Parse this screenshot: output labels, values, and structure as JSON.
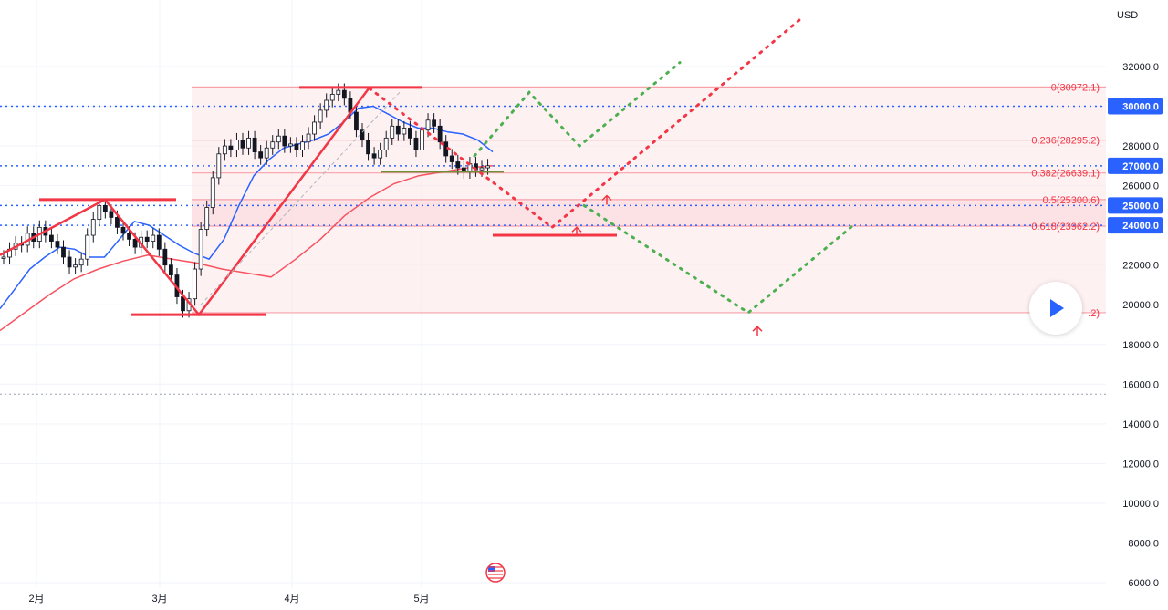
{
  "chart_data": {
    "type": "candlestick",
    "currency": "USD",
    "y_range": [
      6000,
      34000
    ],
    "y_ticks": [
      "32000.0",
      "30000.0",
      "28000.0",
      "26000.0",
      "24000.0",
      "22000.0",
      "20000.0",
      "18000.0",
      "16000.0",
      "14000.0",
      "12000.0",
      "10000.0",
      "8000.0",
      "6000.0"
    ],
    "x_labels": [
      "2月",
      "3月",
      "4月",
      "5月"
    ],
    "highlighted_levels": [
      {
        "label": "30000.0",
        "value": 30000
      },
      {
        "label": "27000.0",
        "value": 27000
      },
      {
        "label": "25000.0",
        "value": 25000
      },
      {
        "label": "24000.0",
        "value": 24000
      }
    ],
    "fib_levels": [
      {
        "label": "0(30972.1)",
        "value": 30972.1
      },
      {
        "label": "0.236(28295.2)",
        "value": 28295.2
      },
      {
        "label": "0.382(26639.1)",
        "value": 26639.1
      },
      {
        "label": "0.5(25300.6)",
        "value": 25300.6
      },
      {
        "label": "0.618(23962.2)",
        "value": 23962.2
      },
      {
        "label": ".2)",
        "value": 19600
      }
    ],
    "dotted_level": 15500,
    "candles_close_approx": [
      22400,
      22800,
      23100,
      23000,
      23600,
      23200,
      23900,
      23500,
      23200,
      22900,
      22400,
      21900,
      22000,
      22300,
      23500,
      24300,
      25000,
      24700,
      24400,
      23900,
      23600,
      23300,
      22900,
      23400,
      23200,
      23500,
      22800,
      22000,
      21500,
      20400,
      19700,
      20300,
      21800,
      23800,
      24900,
      26400,
      27600,
      28000,
      27800,
      28300,
      27900,
      28400,
      27700,
      27400,
      27900,
      28200,
      28500,
      28000,
      28100,
      27800,
      28200,
      28600,
      29200,
      29800,
      30300,
      30600,
      30800,
      30400,
      29700,
      28800,
      28300,
      27600,
      27400,
      27800,
      28400,
      29000,
      28600,
      28900,
      28400,
      27800,
      28800,
      29300,
      29000,
      28200,
      27500,
      27200,
      26900,
      26700,
      27100,
      26800,
      26900,
      27000
    ],
    "ema_fast_approx": [
      19800,
      20800,
      21800,
      22400,
      22900,
      22800,
      22400,
      22400,
      23300,
      24200,
      24000,
      23500,
      23000,
      22600,
      22300,
      23300,
      25000,
      26500,
      27300,
      27900,
      28100,
      28300,
      28600,
      29200,
      29900,
      30000,
      29600,
      29200,
      28900,
      28900,
      28700,
      28600,
      28300,
      27700
    ],
    "ema_slow_approx": [
      18700,
      19600,
      20500,
      21300,
      21800,
      22200,
      22500,
      22300,
      22100,
      21800,
      21600,
      21400,
      22300,
      23300,
      24500,
      25400,
      26100,
      26500,
      26700,
      26900,
      27000
    ],
    "projection_red": [
      {
        "date_idx": 0,
        "price": 30900
      },
      {
        "date_idx": 1,
        "price": 23900
      },
      {
        "date_idx": 2,
        "price": 34500
      }
    ],
    "projection_green": [
      {
        "date_idx": 0,
        "price": 27500
      },
      {
        "date_idx": 1,
        "price": 30700
      },
      {
        "date_idx": 2,
        "price": 28000
      },
      {
        "date_idx": 3,
        "price": 32200
      }
    ],
    "projection_green_lower": [
      {
        "date_idx": 0,
        "price": 25000
      },
      {
        "date_idx": 1,
        "price": 19600
      },
      {
        "date_idx": 2,
        "price": 24000
      }
    ]
  }
}
